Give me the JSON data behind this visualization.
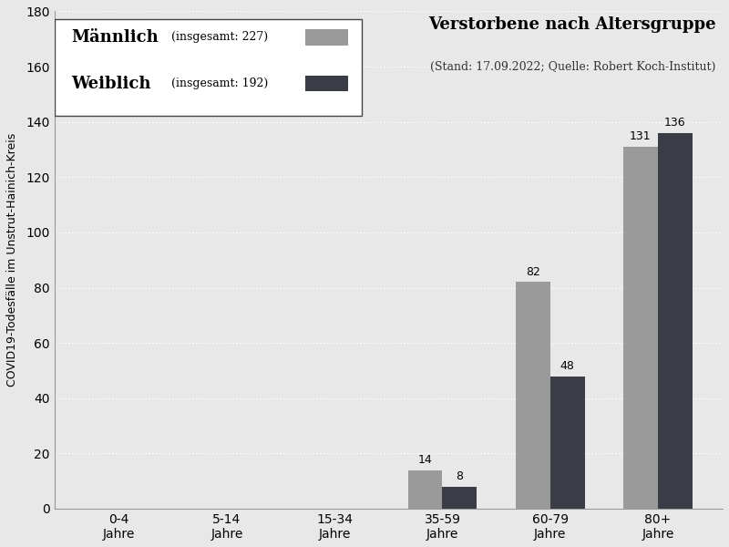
{
  "categories": [
    "0-4\nJahre",
    "5-14\nJahre",
    "15-34\nJahre",
    "35-59\nJahre",
    "60-79\nJahre",
    "80+\nJahre"
  ],
  "maennlich": [
    0,
    0,
    0,
    14,
    82,
    131
  ],
  "weiblich": [
    0,
    0,
    0,
    8,
    48,
    136
  ],
  "maennlich_total": 227,
  "weiblich_total": 192,
  "color_maennlich": "#9a9a9a",
  "color_weiblich": "#3a3d45",
  "title": "Verstorbene nach Altersgruppe",
  "subtitle": "(Stand: 17.09.2022; Quelle: Robert Koch-Institut)",
  "ylabel": "COVID19-Todesfälle im Unstrut-Hainich-Kreis",
  "ylim": [
    0,
    180
  ],
  "yticks": [
    0,
    20,
    40,
    60,
    80,
    100,
    120,
    140,
    160,
    180
  ],
  "bar_width": 0.32,
  "background_color": "#e8e8e8",
  "grid_color": "#ffffff",
  "title_fontsize": 13,
  "subtitle_fontsize": 9,
  "ylabel_fontsize": 9,
  "tick_fontsize": 10,
  "bar_label_fontsize": 9,
  "legend_name_fontsize": 13,
  "legend_detail_fontsize": 9
}
